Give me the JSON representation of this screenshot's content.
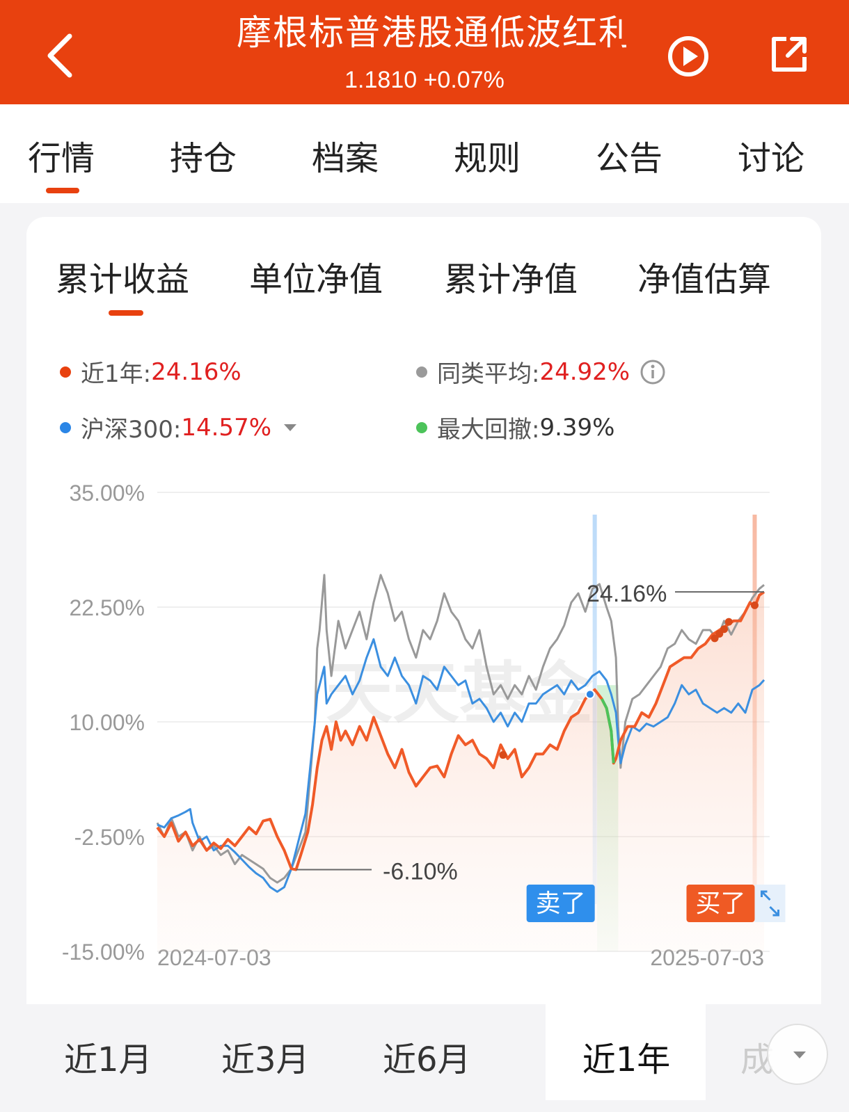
{
  "header": {
    "title": "摩根标普港股通低波红利",
    "price_line": "1.1810 +0.07%",
    "back_icon": "chevron-left-icon",
    "play_icon": "play-circle-icon",
    "share_icon": "share-icon"
  },
  "main_tabs": [
    "行情",
    "持仓",
    "档案",
    "规则",
    "公告",
    "讨论"
  ],
  "main_tab_active": "行情",
  "sub_tabs": [
    "累计收益",
    "单位净值",
    "累计净值",
    "净值估算"
  ],
  "sub_tab_active": "累计收益",
  "legend": {
    "fund": {
      "label": "近1年:",
      "value": "24.16%",
      "color": "#e8410f"
    },
    "peer": {
      "label": "同类平均:",
      "value": "24.92%",
      "color": "#999999"
    },
    "index": {
      "label": "沪深300:",
      "value": "14.57%",
      "color": "#2b86e6"
    },
    "drawdown": {
      "label": "最大回撤:",
      "value": "9.39%",
      "color": "#4cc35a"
    }
  },
  "chart_data": {
    "type": "line",
    "yticks": [
      "35.00%",
      "22.50%",
      "10.00%",
      "-2.50%",
      "-15.00%"
    ],
    "ylim": [
      -15,
      35
    ],
    "xticks": [
      "2024-07-03",
      "2025-07-03"
    ],
    "watermark": "天天基金",
    "annotations": {
      "max": "24.16%",
      "min": "-6.10%"
    },
    "markers": {
      "sell": "卖了",
      "buy": "买了"
    },
    "series": [
      {
        "name": "近1年",
        "color": "#f05a28",
        "points": [
          [
            0,
            -1.5
          ],
          [
            3,
            -2.5
          ],
          [
            6,
            -1
          ],
          [
            9,
            -3
          ],
          [
            12,
            -2
          ],
          [
            15,
            -3.5
          ],
          [
            18,
            -2.8
          ],
          [
            21,
            -4
          ],
          [
            24,
            -3.2
          ],
          [
            27,
            -3.8
          ],
          [
            30,
            -2.8
          ],
          [
            33,
            -3.5
          ],
          [
            36,
            -2.5
          ],
          [
            39,
            -1.5
          ],
          [
            42,
            -2.2
          ],
          [
            45,
            -0.8
          ],
          [
            48,
            -0.6
          ],
          [
            51,
            -2.5
          ],
          [
            54,
            -4
          ],
          [
            57,
            -6
          ],
          [
            59,
            -6.1
          ],
          [
            61,
            -4.5
          ],
          [
            64,
            -2
          ],
          [
            66,
            1
          ],
          [
            68,
            5
          ],
          [
            70,
            8
          ],
          [
            72,
            9.5
          ],
          [
            74,
            7
          ],
          [
            76,
            10
          ],
          [
            78,
            8
          ],
          [
            80,
            9
          ],
          [
            83,
            7.5
          ],
          [
            86,
            9.5
          ],
          [
            89,
            8
          ],
          [
            92,
            10.5
          ],
          [
            95,
            8.5
          ],
          [
            98,
            6.5
          ],
          [
            101,
            5
          ],
          [
            104,
            7
          ],
          [
            107,
            4.5
          ],
          [
            110,
            3
          ],
          [
            113,
            4
          ],
          [
            116,
            5
          ],
          [
            119,
            5.2
          ],
          [
            122,
            4
          ],
          [
            125,
            6.5
          ],
          [
            128,
            8.5
          ],
          [
            131,
            7.5
          ],
          [
            134,
            8
          ],
          [
            137,
            6.5
          ],
          [
            140,
            6
          ],
          [
            143,
            5
          ],
          [
            146,
            7.5
          ],
          [
            149,
            6
          ],
          [
            152,
            7
          ],
          [
            155,
            4
          ],
          [
            158,
            5
          ],
          [
            161,
            6.5
          ],
          [
            164,
            6.5
          ],
          [
            167,
            7.5
          ],
          [
            170,
            7
          ],
          [
            173,
            9
          ],
          [
            176,
            10.5
          ],
          [
            179,
            11
          ],
          [
            182,
            12.5
          ],
          [
            184,
            13
          ],
          [
            186,
            13.5
          ],
          [
            189,
            12.5
          ],
          [
            191,
            11.5
          ],
          [
            193,
            9
          ],
          [
            194,
            5.5
          ],
          [
            195,
            6
          ],
          [
            197,
            8
          ],
          [
            200,
            9.5
          ],
          [
            203,
            9.5
          ],
          [
            206,
            11
          ],
          [
            209,
            10.5
          ],
          [
            212,
            12
          ],
          [
            215,
            14
          ],
          [
            218,
            16
          ],
          [
            221,
            16.5
          ],
          [
            224,
            17
          ],
          [
            227,
            17
          ],
          [
            230,
            18
          ],
          [
            233,
            18.5
          ],
          [
            236,
            19.5
          ],
          [
            239,
            20
          ],
          [
            242,
            20.5
          ],
          [
            245,
            21
          ],
          [
            248,
            21
          ],
          [
            250,
            22
          ],
          [
            252,
            23
          ],
          [
            254,
            22.5
          ],
          [
            256,
            23.8
          ],
          [
            258,
            24.16
          ]
        ]
      },
      {
        "name": "同类平均",
        "color": "#999999",
        "points": [
          [
            0,
            -1
          ],
          [
            3,
            -2.5
          ],
          [
            6,
            -0.5
          ],
          [
            9,
            -2.5
          ],
          [
            12,
            -2
          ],
          [
            15,
            -4
          ],
          [
            18,
            -2.5
          ],
          [
            21,
            -4
          ],
          [
            24,
            -3.5
          ],
          [
            27,
            -4.5
          ],
          [
            30,
            -4
          ],
          [
            33,
            -5.5
          ],
          [
            36,
            -4.5
          ],
          [
            39,
            -5
          ],
          [
            42,
            -5.5
          ],
          [
            45,
            -6
          ],
          [
            48,
            -7
          ],
          [
            51,
            -7.5
          ],
          [
            54,
            -7
          ],
          [
            57,
            -6
          ],
          [
            60,
            -4
          ],
          [
            63,
            -2
          ],
          [
            65,
            4
          ],
          [
            67,
            10
          ],
          [
            68,
            18
          ],
          [
            69,
            20
          ],
          [
            71,
            26
          ],
          [
            72,
            20
          ],
          [
            74,
            15
          ],
          [
            77,
            21
          ],
          [
            80,
            18
          ],
          [
            83,
            20
          ],
          [
            86,
            22
          ],
          [
            89,
            19
          ],
          [
            92,
            23
          ],
          [
            95,
            26
          ],
          [
            98,
            24
          ],
          [
            101,
            21
          ],
          [
            104,
            22
          ],
          [
            107,
            19
          ],
          [
            110,
            17
          ],
          [
            113,
            20
          ],
          [
            116,
            19
          ],
          [
            119,
            21
          ],
          [
            122,
            24
          ],
          [
            125,
            22
          ],
          [
            128,
            21
          ],
          [
            131,
            19
          ],
          [
            134,
            18
          ],
          [
            137,
            20
          ],
          [
            140,
            16
          ],
          [
            143,
            13
          ],
          [
            146,
            14
          ],
          [
            149,
            12.5
          ],
          [
            152,
            14
          ],
          [
            155,
            13
          ],
          [
            158,
            15
          ],
          [
            161,
            13.5
          ],
          [
            164,
            16
          ],
          [
            167,
            18
          ],
          [
            170,
            19
          ],
          [
            173,
            20.5
          ],
          [
            176,
            23
          ],
          [
            179,
            24
          ],
          [
            182,
            22
          ],
          [
            185,
            24.5
          ],
          [
            188,
            25
          ],
          [
            191,
            22.5
          ],
          [
            193,
            21
          ],
          [
            195,
            17
          ],
          [
            196,
            9.5
          ],
          [
            197,
            5
          ],
          [
            199,
            10
          ],
          [
            202,
            12.5
          ],
          [
            205,
            13
          ],
          [
            208,
            14
          ],
          [
            211,
            15
          ],
          [
            214,
            16
          ],
          [
            217,
            18
          ],
          [
            220,
            18.5
          ],
          [
            223,
            20
          ],
          [
            226,
            19
          ],
          [
            229,
            18.5
          ],
          [
            232,
            20
          ],
          [
            235,
            20
          ],
          [
            238,
            19
          ],
          [
            241,
            21
          ],
          [
            244,
            19.5
          ],
          [
            247,
            21
          ],
          [
            250,
            22
          ],
          [
            253,
            23.5
          ],
          [
            256,
            24.5
          ],
          [
            258,
            24.92
          ]
        ]
      },
      {
        "name": "沪深300",
        "color": "#3b8fe0",
        "points": [
          [
            0,
            -1.2
          ],
          [
            3,
            -1.5
          ],
          [
            6,
            -0.5
          ],
          [
            9,
            -0.2
          ],
          [
            12,
            0.2
          ],
          [
            14,
            0.5
          ],
          [
            15,
            -1
          ],
          [
            18,
            -3
          ],
          [
            21,
            -2.5
          ],
          [
            24,
            -4
          ],
          [
            27,
            -3.5
          ],
          [
            30,
            -3.5
          ],
          [
            33,
            -4.2
          ],
          [
            36,
            -5
          ],
          [
            39,
            -5.8
          ],
          [
            42,
            -6.5
          ],
          [
            45,
            -7
          ],
          [
            48,
            -8
          ],
          [
            51,
            -8.5
          ],
          [
            54,
            -8
          ],
          [
            57,
            -6
          ],
          [
            60,
            -3
          ],
          [
            63,
            0
          ],
          [
            65,
            5
          ],
          [
            67,
            10
          ],
          [
            68,
            13
          ],
          [
            69,
            14
          ],
          [
            71,
            16
          ],
          [
            72,
            12
          ],
          [
            74,
            13
          ],
          [
            77,
            14
          ],
          [
            80,
            15
          ],
          [
            83,
            13
          ],
          [
            86,
            14.5
          ],
          [
            89,
            17
          ],
          [
            92,
            19
          ],
          [
            95,
            16
          ],
          [
            98,
            15
          ],
          [
            101,
            17
          ],
          [
            104,
            15
          ],
          [
            107,
            14
          ],
          [
            110,
            12
          ],
          [
            113,
            15
          ],
          [
            116,
            14.5
          ],
          [
            119,
            13.5
          ],
          [
            122,
            16
          ],
          [
            125,
            15
          ],
          [
            128,
            14
          ],
          [
            131,
            14.5
          ],
          [
            134,
            12
          ],
          [
            137,
            12.5
          ],
          [
            140,
            11.5
          ],
          [
            143,
            10
          ],
          [
            146,
            11
          ],
          [
            149,
            9.5
          ],
          [
            152,
            11
          ],
          [
            155,
            10
          ],
          [
            158,
            12
          ],
          [
            161,
            12
          ],
          [
            164,
            13
          ],
          [
            167,
            13.5
          ],
          [
            170,
            14
          ],
          [
            173,
            13
          ],
          [
            176,
            14.5
          ],
          [
            179,
            13.5
          ],
          [
            182,
            14
          ],
          [
            185,
            15
          ],
          [
            188,
            15.5
          ],
          [
            191,
            14.5
          ],
          [
            193,
            13
          ],
          [
            195,
            11
          ],
          [
            196,
            8
          ],
          [
            197,
            5.5
          ],
          [
            199,
            7.5
          ],
          [
            202,
            9.5
          ],
          [
            205,
            9
          ],
          [
            208,
            9.8
          ],
          [
            211,
            9.5
          ],
          [
            214,
            10
          ],
          [
            217,
            10.5
          ],
          [
            220,
            12
          ],
          [
            223,
            14
          ],
          [
            226,
            13
          ],
          [
            229,
            13.5
          ],
          [
            232,
            12
          ],
          [
            235,
            11.5
          ],
          [
            238,
            11
          ],
          [
            241,
            11.5
          ],
          [
            244,
            11
          ],
          [
            247,
            12
          ],
          [
            250,
            11
          ],
          [
            253,
            13.5
          ],
          [
            256,
            14
          ],
          [
            258,
            14.57
          ]
        ]
      }
    ]
  },
  "range_tabs": [
    "近1月",
    "近3月",
    "近6月",
    "近1年",
    "成"
  ],
  "range_active": "近1年",
  "icons": {
    "info": "info-circle-icon",
    "expand": "expand-icon",
    "more": "chevron-down-icon"
  }
}
